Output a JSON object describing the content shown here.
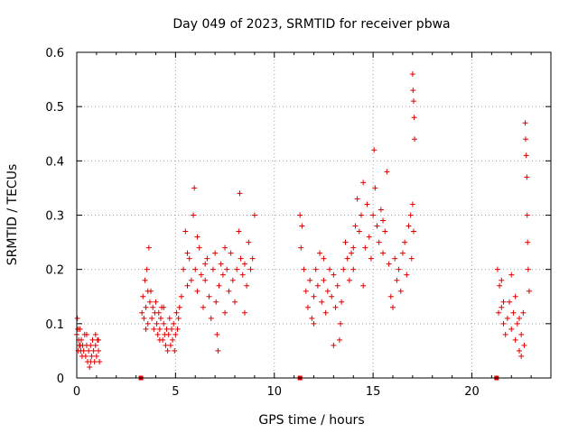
{
  "chart_data": {
    "type": "scatter",
    "title": "Day 049 of 2023, SRMTID for receiver pbwa",
    "xlabel": "GPS time / hours",
    "ylabel": "SRMTID / TECUs",
    "xlim": [
      0,
      24
    ],
    "ylim": [
      0,
      0.6
    ],
    "xticks": [
      0,
      5,
      10,
      15,
      20
    ],
    "xtick_labels": [
      "0",
      "5",
      "10",
      "15",
      "20"
    ],
    "yticks": [
      0,
      0.1,
      0.2,
      0.3,
      0.4,
      0.5,
      0.6
    ],
    "ytick_labels": [
      "0",
      "0.1",
      "0.2",
      "0.3",
      "0.4",
      "0.5",
      "0.6"
    ],
    "grid": true,
    "marker": "plus",
    "color": "#e00000",
    "series": [
      {
        "name": "SRMTID",
        "points": [
          [
            0.0,
            0.08
          ],
          [
            0.03,
            0.11
          ],
          [
            0.06,
            0.09
          ],
          [
            0.1,
            0.07
          ],
          [
            0.13,
            0.06
          ],
          [
            0.16,
            0.09
          ],
          [
            0.2,
            0.05
          ],
          [
            0.23,
            0.07
          ],
          [
            0.27,
            0.04
          ],
          [
            0.3,
            0.06
          ],
          [
            0.35,
            0.05
          ],
          [
            0.4,
            0.08
          ],
          [
            0.45,
            0.04
          ],
          [
            0.5,
            0.06
          ],
          [
            0.55,
            0.03
          ],
          [
            0.6,
            0.05
          ],
          [
            0.65,
            0.02
          ],
          [
            0.7,
            0.06
          ],
          [
            0.75,
            0.04
          ],
          [
            0.8,
            0.07
          ],
          [
            0.85,
            0.05
          ],
          [
            0.9,
            0.03
          ],
          [
            0.95,
            0.06
          ],
          [
            1.0,
            0.04
          ],
          [
            1.05,
            0.07
          ],
          [
            1.1,
            0.05
          ],
          [
            1.15,
            0.03
          ],
          [
            0.08,
            0.05
          ],
          [
            0.18,
            0.06
          ],
          [
            0.5,
            0.08
          ],
          [
            0.7,
            0.03
          ],
          [
            0.95,
            0.08
          ],
          [
            1.1,
            0.07
          ],
          [
            3.25,
            0.0
          ],
          [
            3.3,
            0.12
          ],
          [
            3.35,
            0.15
          ],
          [
            3.4,
            0.11
          ],
          [
            3.45,
            0.18
          ],
          [
            3.5,
            0.13
          ],
          [
            3.55,
            0.2
          ],
          [
            3.6,
            0.1
          ],
          [
            3.65,
            0.24
          ],
          [
            3.7,
            0.14
          ],
          [
            3.75,
            0.16
          ],
          [
            3.8,
            0.11
          ],
          [
            3.85,
            0.13
          ],
          [
            3.9,
            0.09
          ],
          [
            3.95,
            0.12
          ],
          [
            4.0,
            0.14
          ],
          [
            4.05,
            0.1
          ],
          [
            4.1,
            0.08
          ],
          [
            4.15,
            0.12
          ],
          [
            4.2,
            0.09
          ],
          [
            4.25,
            0.11
          ],
          [
            4.3,
            0.13
          ],
          [
            4.35,
            0.07
          ],
          [
            4.4,
            0.1
          ],
          [
            4.45,
            0.08
          ],
          [
            4.5,
            0.06
          ],
          [
            4.55,
            0.09
          ],
          [
            4.6,
            0.05
          ],
          [
            4.65,
            0.08
          ],
          [
            4.7,
            0.11
          ],
          [
            4.75,
            0.06
          ],
          [
            4.8,
            0.09
          ],
          [
            4.85,
            0.07
          ],
          [
            4.9,
            0.1
          ],
          [
            4.95,
            0.05
          ],
          [
            5.0,
            0.08
          ],
          [
            5.05,
            0.12
          ],
          [
            5.1,
            0.09
          ],
          [
            5.15,
            0.11
          ],
          [
            5.2,
            0.13
          ],
          [
            4.4,
            0.13
          ],
          [
            4.2,
            0.07
          ],
          [
            3.6,
            0.16
          ],
          [
            3.5,
            0.09
          ],
          [
            5.3,
            0.15
          ],
          [
            5.4,
            0.2
          ],
          [
            5.5,
            0.27
          ],
          [
            5.6,
            0.17
          ],
          [
            5.7,
            0.22
          ],
          [
            5.8,
            0.18
          ],
          [
            5.9,
            0.3
          ],
          [
            5.95,
            0.35
          ],
          [
            6.0,
            0.2
          ],
          [
            6.1,
            0.16
          ],
          [
            6.2,
            0.24
          ],
          [
            6.3,
            0.19
          ],
          [
            6.4,
            0.13
          ],
          [
            6.5,
            0.18
          ],
          [
            6.6,
            0.22
          ],
          [
            6.7,
            0.15
          ],
          [
            6.8,
            0.11
          ],
          [
            6.9,
            0.2
          ],
          [
            7.0,
            0.23
          ],
          [
            7.05,
            0.14
          ],
          [
            7.1,
            0.08
          ],
          [
            7.15,
            0.05
          ],
          [
            7.2,
            0.17
          ],
          [
            7.3,
            0.21
          ],
          [
            7.4,
            0.19
          ],
          [
            7.5,
            0.12
          ],
          [
            7.6,
            0.2
          ],
          [
            7.7,
            0.16
          ],
          [
            7.8,
            0.23
          ],
          [
            7.9,
            0.18
          ],
          [
            8.0,
            0.14
          ],
          [
            8.1,
            0.2
          ],
          [
            8.2,
            0.27
          ],
          [
            8.25,
            0.34
          ],
          [
            8.3,
            0.22
          ],
          [
            8.4,
            0.19
          ],
          [
            8.5,
            0.12
          ],
          [
            8.6,
            0.17
          ],
          [
            8.7,
            0.25
          ],
          [
            8.8,
            0.2
          ],
          [
            8.9,
            0.22
          ],
          [
            9.0,
            0.3
          ],
          [
            6.5,
            0.21
          ],
          [
            7.5,
            0.24
          ],
          [
            8.5,
            0.21
          ],
          [
            5.6,
            0.23
          ],
          [
            6.1,
            0.26
          ],
          [
            11.3,
            0.0
          ],
          [
            11.3,
            0.3
          ],
          [
            11.35,
            0.24
          ],
          [
            11.4,
            0.28
          ],
          [
            11.5,
            0.2
          ],
          [
            11.6,
            0.16
          ],
          [
            11.7,
            0.13
          ],
          [
            11.8,
            0.18
          ],
          [
            11.9,
            0.11
          ],
          [
            12.0,
            0.15
          ],
          [
            12.1,
            0.2
          ],
          [
            12.2,
            0.17
          ],
          [
            12.3,
            0.23
          ],
          [
            12.4,
            0.14
          ],
          [
            12.5,
            0.18
          ],
          [
            12.6,
            0.12
          ],
          [
            12.7,
            0.16
          ],
          [
            12.8,
            0.2
          ],
          [
            12.9,
            0.15
          ],
          [
            13.0,
            0.19
          ],
          [
            13.1,
            0.13
          ],
          [
            13.2,
            0.17
          ],
          [
            13.3,
            0.07
          ],
          [
            13.35,
            0.1
          ],
          [
            13.4,
            0.14
          ],
          [
            13.5,
            0.2
          ],
          [
            13.6,
            0.25
          ],
          [
            13.7,
            0.22
          ],
          [
            13.8,
            0.18
          ],
          [
            13.9,
            0.23
          ],
          [
            14.0,
            0.2
          ],
          [
            14.1,
            0.28
          ],
          [
            14.2,
            0.33
          ],
          [
            14.3,
            0.27
          ],
          [
            14.4,
            0.3
          ],
          [
            14.5,
            0.36
          ],
          [
            14.6,
            0.24
          ],
          [
            14.7,
            0.32
          ],
          [
            14.8,
            0.26
          ],
          [
            14.9,
            0.22
          ],
          [
            15.0,
            0.3
          ],
          [
            15.05,
            0.42
          ],
          [
            15.1,
            0.35
          ],
          [
            15.2,
            0.28
          ],
          [
            15.3,
            0.25
          ],
          [
            15.4,
            0.31
          ],
          [
            15.5,
            0.23
          ],
          [
            15.6,
            0.27
          ],
          [
            15.7,
            0.38
          ],
          [
            15.8,
            0.21
          ],
          [
            15.9,
            0.15
          ],
          [
            16.0,
            0.13
          ],
          [
            16.1,
            0.22
          ],
          [
            16.2,
            0.18
          ],
          [
            16.3,
            0.2
          ],
          [
            16.4,
            0.16
          ],
          [
            16.5,
            0.23
          ],
          [
            16.6,
            0.25
          ],
          [
            16.7,
            0.19
          ],
          [
            16.8,
            0.28
          ],
          [
            16.9,
            0.3
          ],
          [
            17.0,
            0.56
          ],
          [
            17.02,
            0.53
          ],
          [
            17.05,
            0.51
          ],
          [
            17.08,
            0.48
          ],
          [
            17.1,
            0.44
          ],
          [
            17.0,
            0.32
          ],
          [
            17.05,
            0.27
          ],
          [
            16.95,
            0.22
          ],
          [
            12.0,
            0.1
          ],
          [
            13.0,
            0.06
          ],
          [
            14.0,
            0.24
          ],
          [
            15.5,
            0.29
          ],
          [
            14.5,
            0.17
          ],
          [
            12.5,
            0.22
          ],
          [
            21.25,
            0.0
          ],
          [
            21.3,
            0.2
          ],
          [
            21.4,
            0.17
          ],
          [
            21.5,
            0.13
          ],
          [
            21.6,
            0.1
          ],
          [
            21.7,
            0.08
          ],
          [
            21.8,
            0.11
          ],
          [
            21.9,
            0.14
          ],
          [
            22.0,
            0.09
          ],
          [
            22.1,
            0.12
          ],
          [
            22.2,
            0.07
          ],
          [
            22.3,
            0.1
          ],
          [
            22.4,
            0.05
          ],
          [
            22.5,
            0.08
          ],
          [
            22.6,
            0.12
          ],
          [
            22.65,
            0.06
          ],
          [
            22.7,
            0.47
          ],
          [
            22.72,
            0.44
          ],
          [
            22.75,
            0.41
          ],
          [
            22.78,
            0.37
          ],
          [
            22.8,
            0.3
          ],
          [
            22.82,
            0.25
          ],
          [
            22.85,
            0.2
          ],
          [
            22.9,
            0.16
          ],
          [
            21.5,
            0.18
          ],
          [
            21.6,
            0.14
          ],
          [
            22.0,
            0.19
          ],
          [
            22.2,
            0.15
          ],
          [
            22.4,
            0.11
          ],
          [
            22.5,
            0.04
          ],
          [
            21.35,
            0.12
          ]
        ]
      }
    ]
  }
}
